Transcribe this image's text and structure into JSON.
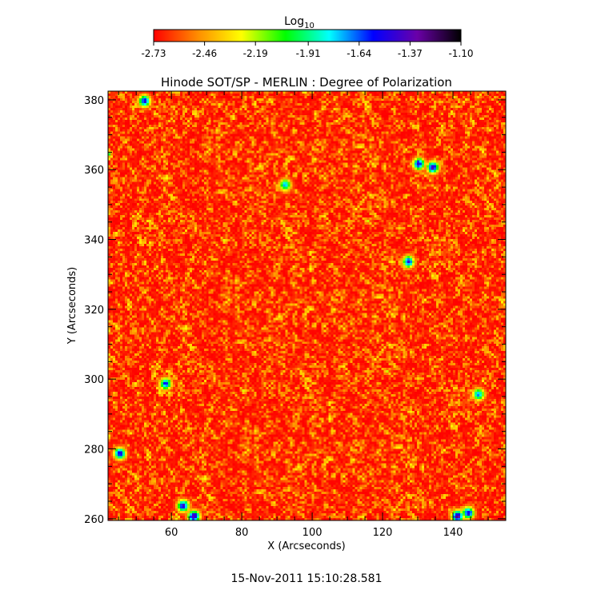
{
  "chart_data": {
    "type": "heatmap",
    "title": "Hinode SOT/SP - MERLIN : Degree of Polarization",
    "xlabel": "X (Arcseconds)",
    "ylabel": "Y (Arcseconds)",
    "xlim": [
      42,
      155
    ],
    "ylim": [
      259.5,
      382.5
    ],
    "xticks": [
      60,
      80,
      100,
      120,
      140
    ],
    "yticks": [
      260,
      280,
      300,
      320,
      340,
      360,
      380
    ],
    "colorbar": {
      "label_base": "Log",
      "label_sub": "10",
      "range": [
        -2.73,
        -1.1
      ],
      "ticks": [
        "-2.73",
        "-2.46",
        "-2.19",
        "-1.91",
        "-1.64",
        "-1.37",
        "-1.10"
      ],
      "colors": [
        "#ff0000",
        "#ff8c00",
        "#ffff00",
        "#00ff00",
        "#00ffff",
        "#0000ff",
        "#6a00a8",
        "#000000"
      ]
    },
    "grid": false,
    "legend": "none",
    "high_value_patches": [
      {
        "x": 52,
        "y": 380,
        "value": -1.35
      },
      {
        "x": 58,
        "y": 299,
        "value": -1.45
      },
      {
        "x": 45,
        "y": 279,
        "value": -1.35
      },
      {
        "x": 63,
        "y": 264,
        "value": -1.3
      },
      {
        "x": 66,
        "y": 261,
        "value": -1.15
      },
      {
        "x": 92,
        "y": 356,
        "value": -1.6
      },
      {
        "x": 130,
        "y": 362,
        "value": -1.3
      },
      {
        "x": 134,
        "y": 361,
        "value": -1.25
      },
      {
        "x": 127,
        "y": 334,
        "value": -1.35
      },
      {
        "x": 141,
        "y": 261,
        "value": -1.15
      },
      {
        "x": 144,
        "y": 262,
        "value": -1.3
      },
      {
        "x": 147,
        "y": 296,
        "value": -1.55
      }
    ]
  },
  "footer": {
    "timestamp": "15-Nov-2011 15:10:28.581"
  }
}
